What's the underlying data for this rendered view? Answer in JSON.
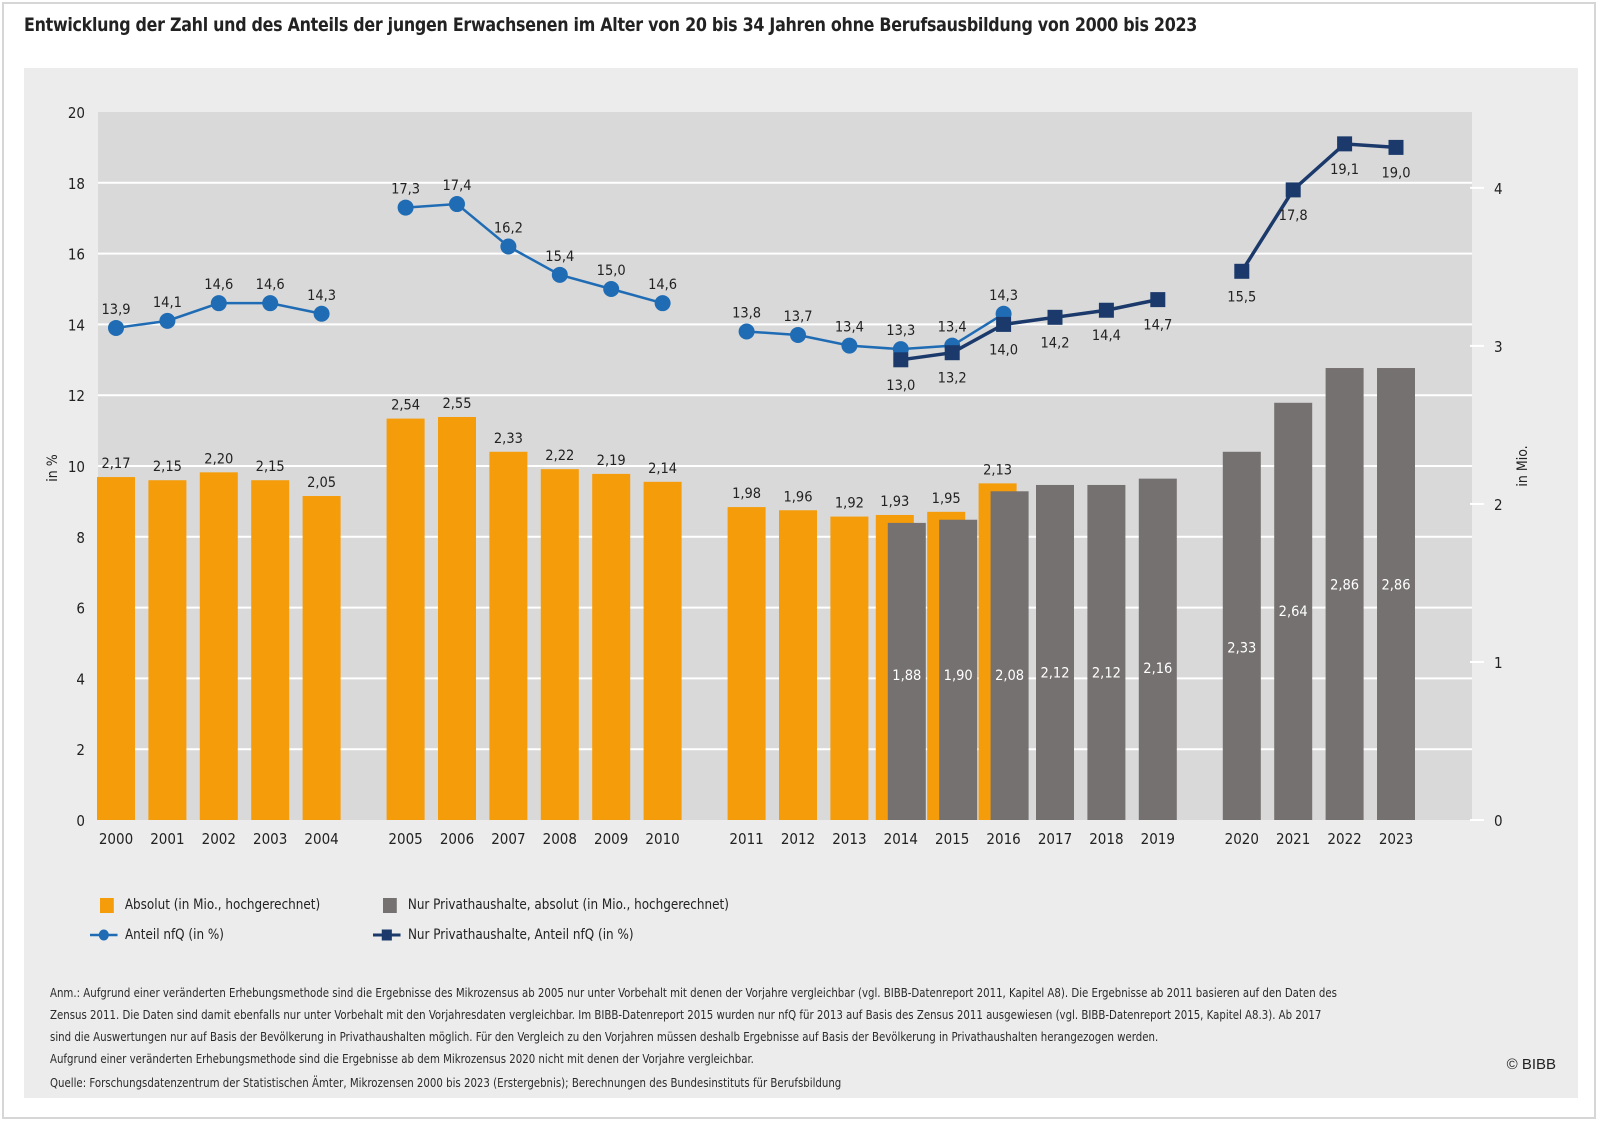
{
  "title": "Entwicklung der Zahl und des Anteils der jungen Erwachsenen im Alter von 20 bis 34 Jahren ohne Berufsausbildung von 2000 bis 2023",
  "colors": {
    "absolut": "#f59c0a",
    "privat_absolut": "#767171",
    "anteil": "#1f6cb5",
    "privat_anteil": "#1b3a6b",
    "plot_bg": "#d9d9d9",
    "panel_bg": "#ececec",
    "grid": "#ffffff"
  },
  "legend": {
    "absolut": "Absolut (in Mio., hochgerechnet)",
    "privat_absolut": "Nur Privathaushalte, absolut (in Mio., hochgerechnet)",
    "anteil": "Anteil nfQ (in %)",
    "privat_anteil": "Nur Privathaushalte, Anteil nfQ (in %)"
  },
  "notes": {
    "line1": "Anm.: Aufgrund einer veränderten Erhebungsmethode sind die Ergebnisse des Mikrozensus ab 2005 nur unter Vorbehalt mit denen der Vorjahre vergleichbar (vgl. BIBB-Datenreport 2011, Kapitel A8). Die Ergebnisse ab 2011 basieren auf den Daten des",
    "line2": "Zensus 2011. Die Daten sind damit ebenfalls nur unter Vorbehalt mit den Vorjahresdaten vergleichbar. Im BIBB-Datenreport 2015 wurden nur nfQ für 2013 auf Basis des Zensus 2011 ausgewiesen (vgl. BIBB-Datenreport 2015, Kapitel A8.3). Ab 2017",
    "line3": "sind die Auswertungen nur auf Basis der Bevölkerung in Privathaushalten möglich. Für den Vergleich zu den Vorjahren müssen deshalb Ergebnisse auf Basis der Bevölkerung in Privathaushalten herangezogen werden.",
    "line4": "Aufgrund einer veränderten Erhebungsmethode sind die Ergebnisse ab dem Mikrozensus 2020 nicht mit denen der Vorjahre vergleichbar.",
    "source": "Quelle: Forschungsdatenzentrum der Statistischen Ämter, Mikrozensen 2000 bis 2023 (Erstergebnis); Berechnungen des Bundesinstituts für Berufsbildung"
  },
  "copyright": "© BIBB",
  "chart_data": {
    "type": "bar",
    "title": "Entwicklung der Zahl und des Anteils der jungen Erwachsenen im Alter von 20 bis 34 Jahren ohne Berufsausbildung von 2000 bis 2023",
    "xlabel": "",
    "ylabel": "in %",
    "ylabel_right": "in Mio.",
    "ylim": [
      0,
      20
    ],
    "ylim_right": [
      0,
      4.48
    ],
    "yticks": [
      "0",
      "2",
      "4",
      "6",
      "8",
      "10",
      "12",
      "14",
      "16",
      "18",
      "20"
    ],
    "yticks_right": [
      "0",
      "1",
      "2",
      "3",
      "4"
    ],
    "grid": true,
    "legend_position": "bottom-left",
    "categories": [
      "2000",
      "2001",
      "2002",
      "2003",
      "2004",
      "2005",
      "2006",
      "2007",
      "2008",
      "2009",
      "2010",
      "2011",
      "2012",
      "2013",
      "2014",
      "2015",
      "2016",
      "2017",
      "2018",
      "2019",
      "2020",
      "2021",
      "2022",
      "2023"
    ],
    "groups": [
      [
        "2000",
        "2001",
        "2002",
        "2003",
        "2004"
      ],
      [
        "2005",
        "2006",
        "2007",
        "2008",
        "2009",
        "2010"
      ],
      [
        "2011",
        "2012",
        "2013",
        "2014",
        "2015",
        "2016",
        "2017",
        "2018",
        "2019"
      ],
      [
        "2020",
        "2021",
        "2022",
        "2023"
      ]
    ],
    "series": [
      {
        "name": "Absolut (in Mio., hochgerechnet)",
        "type": "bar",
        "axis": "right",
        "values": [
          2.17,
          2.15,
          2.2,
          2.15,
          2.05,
          2.54,
          2.55,
          2.33,
          2.22,
          2.19,
          2.14,
          1.98,
          1.96,
          1.92,
          1.93,
          1.95,
          2.13,
          null,
          null,
          null,
          null,
          null,
          null,
          null
        ],
        "labels": [
          "2,17",
          "2,15",
          "2,20",
          "2,15",
          "2,05",
          "2,54",
          "2,55",
          "2,33",
          "2,22",
          "2,19",
          "2,14",
          "1,98",
          "1,96",
          "1,92",
          "1,93",
          "1,95",
          "2,13",
          null,
          null,
          null,
          null,
          null,
          null,
          null
        ]
      },
      {
        "name": "Nur Privathaushalte, absolut (in Mio., hochgerechnet)",
        "type": "bar",
        "axis": "right",
        "values": [
          null,
          null,
          null,
          null,
          null,
          null,
          null,
          null,
          null,
          null,
          null,
          null,
          null,
          null,
          1.88,
          1.9,
          2.08,
          2.12,
          2.12,
          2.16,
          2.33,
          2.64,
          2.86,
          2.86
        ],
        "labels": [
          null,
          null,
          null,
          null,
          null,
          null,
          null,
          null,
          null,
          null,
          null,
          null,
          null,
          null,
          "1,88",
          "1,90",
          "2,08",
          "2,12",
          "2,12",
          "2,16",
          "2,33",
          "2,64",
          "2,86",
          "2,86"
        ]
      },
      {
        "name": "Anteil nfQ (in %)",
        "type": "line",
        "axis": "left",
        "values": [
          13.9,
          14.1,
          14.6,
          14.6,
          14.3,
          17.3,
          17.4,
          16.2,
          15.4,
          15.0,
          14.6,
          13.8,
          13.7,
          13.4,
          13.3,
          13.4,
          14.3,
          null,
          null,
          null,
          null,
          null,
          null,
          null
        ],
        "labels": [
          "13,9",
          "14,1",
          "14,6",
          "14,6",
          "14,3",
          "17,3",
          "17,4",
          "16,2",
          "15,4",
          "15,0",
          "14,6",
          "13,8",
          "13,7",
          "13,4",
          "13,3",
          "13,4",
          "14,3",
          null,
          null,
          null,
          null,
          null,
          null,
          null
        ]
      },
      {
        "name": "Nur Privathaushalte, Anteil nfQ (in %)",
        "type": "line",
        "axis": "left",
        "values": [
          null,
          null,
          null,
          null,
          null,
          null,
          null,
          null,
          null,
          null,
          null,
          null,
          null,
          null,
          13.0,
          13.2,
          14.0,
          14.2,
          14.4,
          14.7,
          15.5,
          17.8,
          19.1,
          19.0
        ],
        "labels": [
          null,
          null,
          null,
          null,
          null,
          null,
          null,
          null,
          null,
          null,
          null,
          null,
          null,
          null,
          "13,0",
          "13,2",
          "14,0",
          "14,2",
          "14,4",
          "14,7",
          "15,5",
          "17,8",
          "19,1",
          "19,0"
        ]
      }
    ]
  }
}
